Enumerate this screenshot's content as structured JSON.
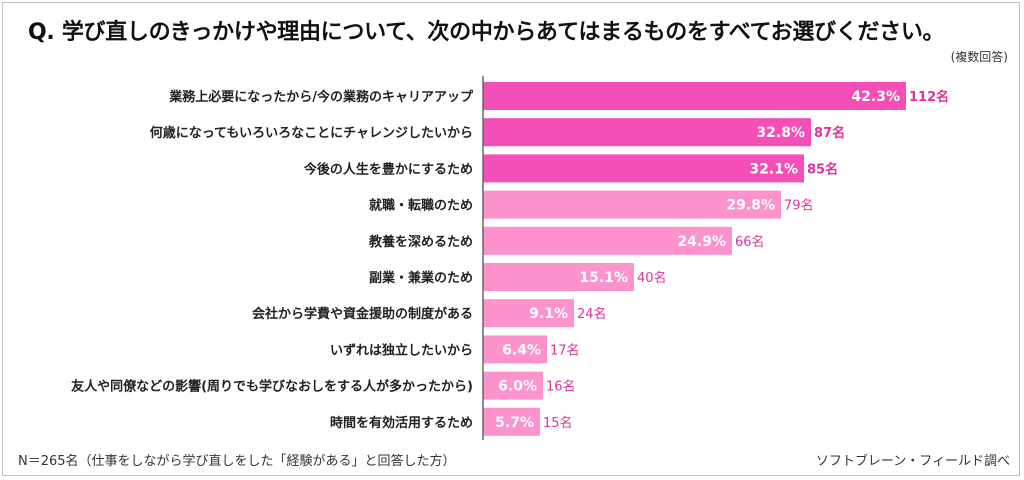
{
  "title": "Q.  学び直しのきっかけや理由について、次の中からあてはまるものをすべてお選びください。",
  "note": "(複数回答)",
  "footer": {
    "sample": "N＝265名（仕事をしながら学び直しをした「経験がある」と回答した方）",
    "source": "ソフトブレーン・フィールド調べ"
  },
  "colors": {
    "bar_dark": "#f44fb6",
    "bar_light": "#fc93cc",
    "count_dark": "#e0339c",
    "count_light": "#e0339c",
    "axis": "#666666"
  },
  "chart_data": {
    "type": "bar",
    "orientation": "horizontal",
    "categories": [
      "業務上必要になったから/今の業務のキャリアアップ",
      "何歳になってもいろいろなことにチャレンジしたいから",
      "今後の人生を豊かにするため",
      "就職・転職のため",
      "教養を深めるため",
      "副業・兼業のため",
      "会社から学費や資金援助の制度がある",
      "いずれは独立したいから",
      "友人や同僚などの影響(周りでも学びなおしをする人が多かったから)",
      "時間を有効活用するため"
    ],
    "values": [
      42.3,
      32.8,
      32.1,
      29.8,
      24.9,
      15.1,
      9.1,
      6.4,
      6.0,
      5.7
    ],
    "value_labels": [
      "42.3%",
      "32.8%",
      "32.1%",
      "29.8%",
      "24.9%",
      "15.1%",
      "9.1%",
      "6.4%",
      "6.0%",
      "5.7%"
    ],
    "counts": [
      "112名",
      "87名",
      "85名",
      "79名",
      "66名",
      "40名",
      "24名",
      "17名",
      "16名",
      "15名"
    ],
    "highlight_top": 3,
    "xlim": [
      0,
      47
    ]
  }
}
